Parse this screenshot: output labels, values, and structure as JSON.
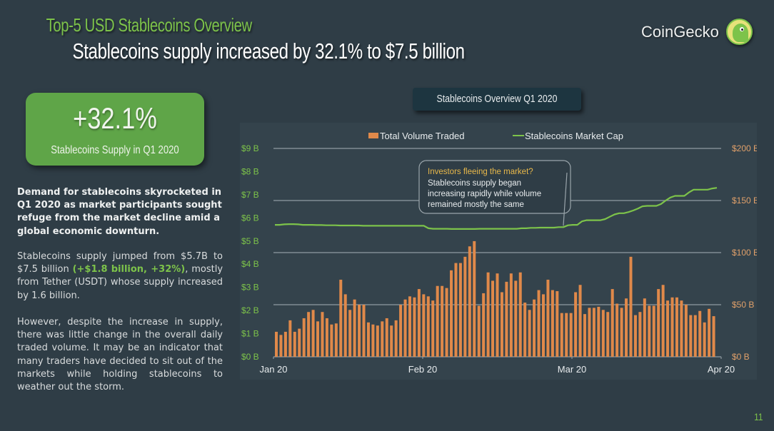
{
  "header": {
    "kicker": "Top-5 USD Stablecoins Overview",
    "title": "Stablecoins supply increased by 32.1% to $7.5 billion",
    "brand": "CoinGecko",
    "brand_icon": "gecko-logo-icon"
  },
  "stat_card": {
    "value": "+32.1%",
    "label": "Stablecoins Supply in Q1 2020"
  },
  "text": {
    "lead": "Demand for stablecoins skyrocketed in Q1 2020 as market participants sought refuge from the market decline amid a global economic downturn.",
    "p1_before": "Stablecoins supply jumped from $5.7B to $7.5 billion ",
    "p1_highlight": "(+$1.8 billion, +32%)",
    "p1_after": ", mostly from Tether (USDT) whose supply increased by 1.6 billion.",
    "p2": "However, despite the increase in supply, there was little change in the overall daily traded volume. It may be an indicator that many traders have decided to sit out of the markets while holding stablecoins to weather out the storm."
  },
  "colors": {
    "background": "#2f3d46",
    "accent_green": "#7dc34a",
    "bar_orange": "#e0894a",
    "annotation_title": "#e8b84a"
  },
  "page_number": "11",
  "chart_data": {
    "type": "bar+line",
    "title": "Stablecoins Overview Q1 2020",
    "legend": [
      "Total Volume Traded",
      "Stablecoins Market Cap"
    ],
    "legend_position": "top-center",
    "x_ticks": [
      "Jan 20",
      "Feb 20",
      "Mar 20",
      "Apr 20"
    ],
    "left_axis": {
      "label": "Stablecoins Market Cap",
      "ticks": [
        "$0 B",
        "$1 B",
        "$2 B",
        "$3 B",
        "$4 B",
        "$5 B",
        "$6 B",
        "$7 B",
        "$8 B",
        "$9 B"
      ],
      "range": [
        0,
        9
      ],
      "unit": "USD billion"
    },
    "right_axis": {
      "label": "Total Volume Traded",
      "ticks": [
        "$0 B",
        "$50 B",
        "$100 B",
        "$150 B",
        "$200 B"
      ],
      "range": [
        0,
        200
      ],
      "unit": "USD billion"
    },
    "grid": true,
    "annotation": {
      "title": "Investors fleeing the market?",
      "body": "Stablecoins supply began increasing rapidly while volume remained mostly the same",
      "points_to_day": 62
    },
    "series": [
      {
        "name": "Total Volume Traded",
        "axis": "right",
        "kind": "bar",
        "values": [
          24,
          21,
          24,
          35,
          24,
          27,
          37,
          43,
          45,
          34,
          43,
          37,
          31,
          32,
          74,
          60,
          45,
          55,
          50,
          50,
          33,
          31,
          30,
          34,
          37,
          30,
          35,
          50,
          55,
          58,
          57,
          65,
          60,
          58,
          54,
          68,
          68,
          66,
          83,
          90,
          90,
          96,
          106,
          111,
          49,
          61,
          81,
          73,
          80,
          62,
          72,
          80,
          73,
          81,
          52,
          45,
          55,
          64,
          60,
          74,
          64,
          63,
          42,
          42,
          42,
          62,
          69,
          41,
          47,
          47,
          48,
          45,
          43,
          65,
          51,
          47,
          56,
          96,
          40,
          43,
          56,
          49,
          49,
          65,
          69,
          54,
          57,
          57,
          54,
          50,
          40,
          40,
          44,
          33,
          46,
          39
        ]
      },
      {
        "name": "Stablecoins Market Cap",
        "axis": "left",
        "kind": "line",
        "values": [
          5.7,
          5.7,
          5.72,
          5.73,
          5.73,
          5.72,
          5.7,
          5.7,
          5.7,
          5.69,
          5.69,
          5.68,
          5.68,
          5.68,
          5.67,
          5.67,
          5.67,
          5.67,
          5.67,
          5.66,
          5.66,
          5.66,
          5.66,
          5.66,
          5.66,
          5.66,
          5.66,
          5.66,
          5.66,
          5.66,
          5.66,
          5.66,
          5.66,
          5.55,
          5.53,
          5.53,
          5.53,
          5.53,
          5.52,
          5.52,
          5.52,
          5.52,
          5.52,
          5.52,
          5.53,
          5.53,
          5.53,
          5.53,
          5.53,
          5.53,
          5.53,
          5.53,
          5.53,
          5.55,
          5.55,
          5.57,
          5.57,
          5.58,
          5.58,
          5.58,
          5.58,
          5.6,
          5.6,
          5.68,
          5.7,
          5.7,
          5.85,
          5.9,
          5.9,
          5.9,
          5.9,
          5.95,
          6.05,
          6.15,
          6.2,
          6.2,
          6.25,
          6.32,
          6.4,
          6.5,
          6.52,
          6.52,
          6.52,
          6.6,
          6.75,
          6.88,
          6.95,
          6.95,
          6.95,
          7.1,
          7.22,
          7.22,
          7.22,
          7.22,
          7.27,
          7.3
        ]
      }
    ]
  }
}
